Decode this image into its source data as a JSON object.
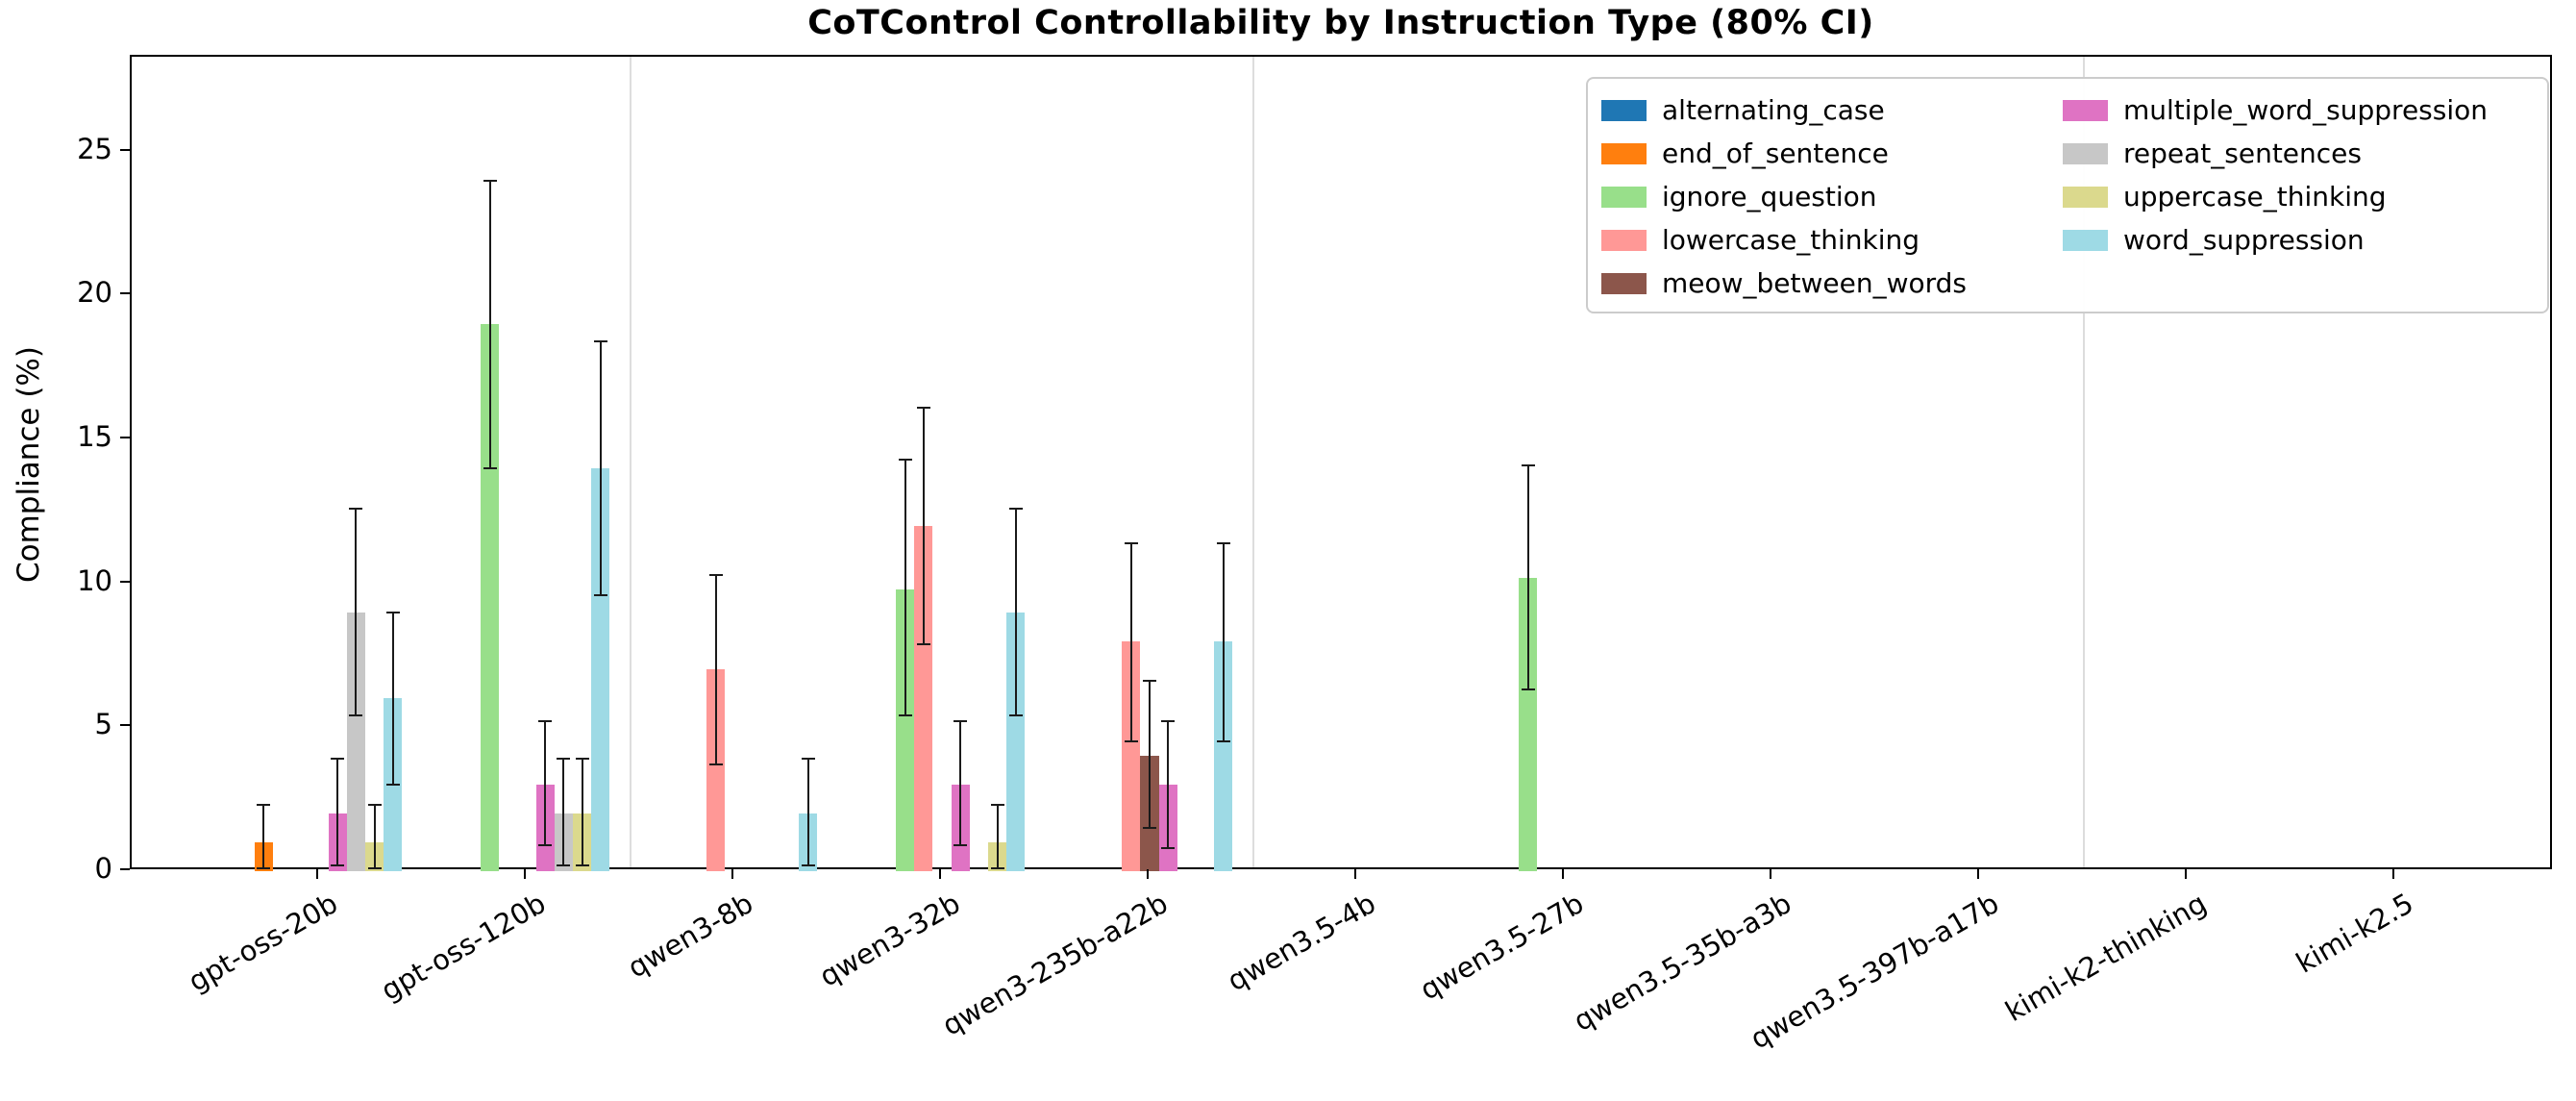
{
  "title": "CoTControl Controllability by Instruction Type (80% CI)",
  "ylabel": "Compliance (%)",
  "chart_data": {
    "type": "bar",
    "title": "CoTControl Controllability by Instruction Type (80% CI)",
    "xlabel": "",
    "ylabel": "Compliance (%)",
    "ylim": [
      0,
      28.3
    ],
    "yticks": [
      0,
      5,
      10,
      15,
      20,
      25
    ],
    "grid": false,
    "legend_position": "upper right",
    "error_bars": "80% confidence interval",
    "categories": [
      "gpt-oss-20b",
      "gpt-oss-120b",
      "qwen3-8b",
      "qwen3-32b",
      "qwen3-235b-a22b",
      "qwen3.5-4b",
      "qwen3.5-27b",
      "qwen3.5-35b-a3b",
      "qwen3.5-397b-a17b",
      "kimi-k2-thinking",
      "kimi-k2.5"
    ],
    "family_separators_between": [
      [
        1,
        2
      ],
      [
        4,
        5
      ],
      [
        8,
        9
      ]
    ],
    "series": [
      {
        "name": "alternating_case",
        "color": "#1f77b4",
        "values": [
          null,
          null,
          null,
          null,
          null,
          null,
          null,
          null,
          null,
          null,
          null
        ],
        "ci": [
          null,
          null,
          null,
          null,
          null,
          null,
          null,
          null,
          null,
          null,
          null
        ]
      },
      {
        "name": "end_of_sentence",
        "color": "#ff7f0e",
        "values": [
          1.0,
          null,
          null,
          null,
          null,
          null,
          null,
          null,
          null,
          null,
          null
        ],
        "ci": [
          [
            0.1,
            2.3
          ],
          null,
          null,
          null,
          null,
          null,
          null,
          null,
          null,
          null,
          null
        ]
      },
      {
        "name": "ignore_question",
        "color": "#98df8a",
        "values": [
          null,
          19.0,
          null,
          9.8,
          null,
          null,
          10.2,
          null,
          null,
          null,
          null
        ],
        "ci": [
          null,
          [
            14.0,
            24.0
          ],
          null,
          [
            5.4,
            14.3
          ],
          null,
          null,
          [
            6.3,
            14.1
          ],
          null,
          null,
          null,
          null
        ]
      },
      {
        "name": "lowercase_thinking",
        "color": "#ff9896",
        "values": [
          null,
          null,
          7.0,
          12.0,
          8.0,
          null,
          null,
          null,
          null,
          null,
          null
        ],
        "ci": [
          null,
          null,
          [
            3.7,
            10.3
          ],
          [
            7.9,
            16.1
          ],
          [
            4.5,
            11.4
          ],
          null,
          null,
          null,
          null,
          null,
          null
        ]
      },
      {
        "name": "meow_between_words",
        "color": "#8c564b",
        "values": [
          null,
          null,
          null,
          null,
          4.0,
          null,
          null,
          null,
          null,
          null,
          null
        ],
        "ci": [
          null,
          null,
          null,
          null,
          [
            1.5,
            6.6
          ],
          null,
          null,
          null,
          null,
          null,
          null
        ]
      },
      {
        "name": "multiple_word_suppression",
        "color": "#df73c3",
        "values": [
          2.0,
          3.0,
          null,
          3.0,
          3.0,
          null,
          null,
          null,
          null,
          null,
          null
        ],
        "ci": [
          [
            0.2,
            3.9
          ],
          [
            0.9,
            5.2
          ],
          null,
          [
            0.9,
            5.2
          ],
          [
            0.8,
            5.2
          ],
          null,
          null,
          null,
          null,
          null,
          null
        ]
      },
      {
        "name": "repeat_sentences",
        "color": "#c7c7c7",
        "values": [
          9.0,
          2.0,
          null,
          null,
          null,
          null,
          null,
          null,
          null,
          null,
          null
        ],
        "ci": [
          [
            5.4,
            12.6
          ],
          [
            0.2,
            3.9
          ],
          null,
          null,
          null,
          null,
          null,
          null,
          null,
          null,
          null
        ]
      },
      {
        "name": "uppercase_thinking",
        "color": "#dbd98d",
        "values": [
          1.0,
          2.0,
          null,
          1.0,
          null,
          null,
          null,
          null,
          null,
          null,
          null
        ],
        "ci": [
          [
            0.1,
            2.3
          ],
          [
            0.2,
            3.9
          ],
          null,
          [
            0.1,
            2.3
          ],
          null,
          null,
          null,
          null,
          null,
          null,
          null
        ]
      },
      {
        "name": "word_suppression",
        "color": "#9edae5",
        "values": [
          6.0,
          14.0,
          2.0,
          9.0,
          8.0,
          null,
          null,
          null,
          null,
          null,
          null
        ],
        "ci": [
          [
            3.0,
            9.0
          ],
          [
            9.6,
            18.4
          ],
          [
            0.2,
            3.9
          ],
          [
            5.4,
            12.6
          ],
          [
            4.5,
            11.4
          ],
          null,
          null,
          null,
          null,
          null,
          null
        ]
      }
    ]
  }
}
